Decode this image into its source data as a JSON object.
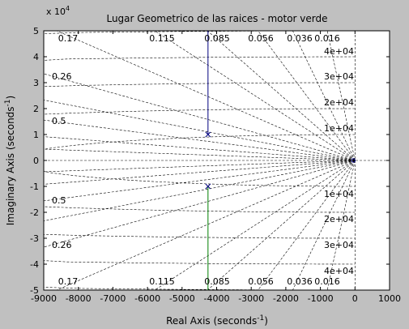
{
  "chart_data": {
    "type": "scatter",
    "title": "Lugar Geometrico de las raices - motor verde",
    "xlabel": "Real Axis (seconds",
    "xlabel_exp": "-1",
    "ylabel": "Imaginary Axis (seconds",
    "ylabel_exp": "-1",
    "y_multiplier": "x 10",
    "y_multiplier_exp": "4",
    "xlim": [
      -9000,
      1000
    ],
    "ylim": [
      -5,
      5
    ],
    "x_ticks": [
      "-9000",
      "-8000",
      "-7000",
      "-6000",
      "-5000",
      "-4000",
      "-3000",
      "-2000",
      "-1000",
      "0",
      "1000"
    ],
    "y_ticks": [
      "5",
      "4",
      "3",
      "2",
      "1",
      "0",
      "-1",
      "-2",
      "-3",
      "-4",
      "-5"
    ],
    "damping_labels": [
      "0.17",
      "0.115",
      "0.085",
      "0.056",
      "0.036",
      "0.016",
      "0.26",
      "0.5"
    ],
    "frequency_labels": [
      "4e+04",
      "3e+04",
      "2e+04",
      "1e+04"
    ],
    "series": [
      {
        "color": "#00007f",
        "x": [
          -4250,
          -4250
        ],
        "y": [
          1.0,
          5.0
        ]
      },
      {
        "color": "#007f00",
        "x": [
          -4250,
          -4250
        ],
        "y": [
          -1.0,
          -5.0
        ]
      }
    ],
    "poles": [
      {
        "x": -4250,
        "y": 1.0
      },
      {
        "x": -4250,
        "y": -1.0
      }
    ],
    "grid": true,
    "colors": {
      "background": "#c0c0c0",
      "axes": "#ffffff",
      "grid": "#000000"
    }
  }
}
